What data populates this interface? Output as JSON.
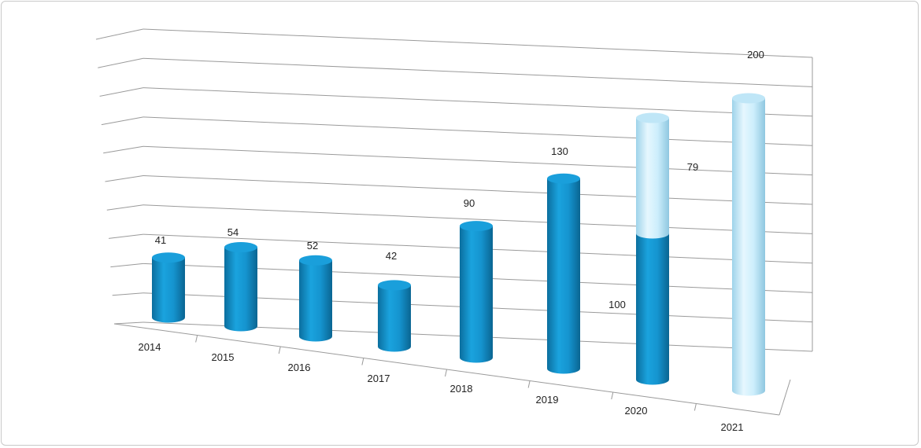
{
  "chart_data": {
    "type": "bar",
    "style": "3d-cylinder-stacked",
    "categories": [
      "2014",
      "2015",
      "2016",
      "2017",
      "2018",
      "2019",
      "2020",
      "2021"
    ],
    "series": [
      {
        "values": [
          41,
          54,
          52,
          42,
          90,
          130,
          100,
          0
        ],
        "color": "#1493cf"
      },
      {
        "values": [
          0,
          0,
          0,
          0,
          0,
          0,
          79,
          200
        ],
        "color": "#c6ecfb"
      }
    ],
    "data_labels": [
      "41",
      "54",
      "52",
      "42",
      "90",
      "130",
      "100",
      "79",
      "200"
    ],
    "ylim": [
      0,
      200
    ],
    "grid": true,
    "legend": "none"
  }
}
